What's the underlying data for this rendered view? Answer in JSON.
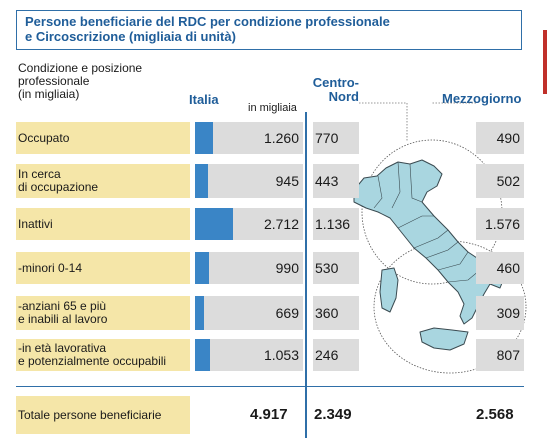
{
  "title": [
    "Persone beneficiarie del RDC per condizione professionale",
    "e Circoscrizione (migliaia di unità)"
  ],
  "headers": {
    "row_label": "Condizione e posizione\nprofessionale\n(in migliaia)",
    "italia": "Italia",
    "unit": "in migliaia",
    "centro_nord": "Centro-\nNord",
    "mezzogiorno": "Mezzogiorno"
  },
  "chart_data": {
    "type": "bar",
    "categories": [
      "Occupato",
      "In cerca\ndi occupazione",
      "Inattivi",
      "-minori 0-14",
      "-anziani 65 e più\ne inabili al lavoro",
      "-in età lavorativa\ne potenzialmente occupabili"
    ],
    "series": [
      {
        "name": "Italia",
        "values": [
          1260,
          945,
          2712,
          990,
          669,
          1053
        ],
        "labels": [
          "1.260",
          "945",
          "2.712",
          "990",
          "669",
          "1.053"
        ]
      },
      {
        "name": "Centro-Nord",
        "values": [
          770,
          443,
          1136,
          530,
          360,
          246
        ],
        "labels": [
          "770",
          "443",
          "1.136",
          "530",
          "360",
          "246"
        ]
      },
      {
        "name": "Mezzogiorno",
        "values": [
          490,
          502,
          1576,
          460,
          309,
          807
        ],
        "labels": [
          "490",
          "502",
          "1.576",
          "460",
          "309",
          "807"
        ]
      }
    ],
    "xlim": [
      0,
      3000
    ],
    "bar_color": "#3a85c6",
    "label_color": "#f5e6a8"
  },
  "total": {
    "label": "Totale persone beneficiarie",
    "italia": "4.917",
    "centro_nord": "2.349",
    "mezzogiorno": "2.568"
  }
}
